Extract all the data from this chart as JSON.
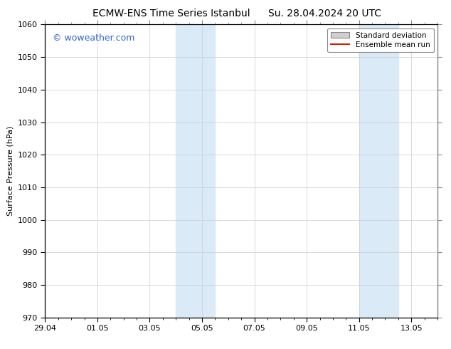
{
  "title_left": "ECMW-ENS Time Series Istanbul",
  "title_right": "Su. 28.04.2024 20 UTC",
  "ylabel": "Surface Pressure (hPa)",
  "ylim": [
    970,
    1060
  ],
  "yticks": [
    970,
    980,
    990,
    1000,
    1010,
    1020,
    1030,
    1040,
    1050,
    1060
  ],
  "xlim": [
    0,
    15
  ],
  "xtick_labels": [
    "29.04",
    "01.05",
    "03.05",
    "05.05",
    "07.05",
    "09.05",
    "11.05",
    "13.05"
  ],
  "xtick_positions": [
    0,
    2,
    4,
    6,
    8,
    10,
    12,
    14
  ],
  "shaded_regions": [
    {
      "x_start": 5.0,
      "x_end": 6.5
    },
    {
      "x_start": 12.0,
      "x_end": 13.5
    }
  ],
  "shaded_color": "#daeaf7",
  "grid_color": "#cccccc",
  "watermark_text": "© woweather.com",
  "watermark_color": "#3366cc",
  "background_color": "#ffffff",
  "legend_std_facecolor": "#d0d0d0",
  "legend_std_edgecolor": "#888888",
  "legend_mean_color": "#cc2200",
  "title_fontsize": 10,
  "ylabel_fontsize": 8,
  "tick_fontsize": 8,
  "watermark_fontsize": 9
}
